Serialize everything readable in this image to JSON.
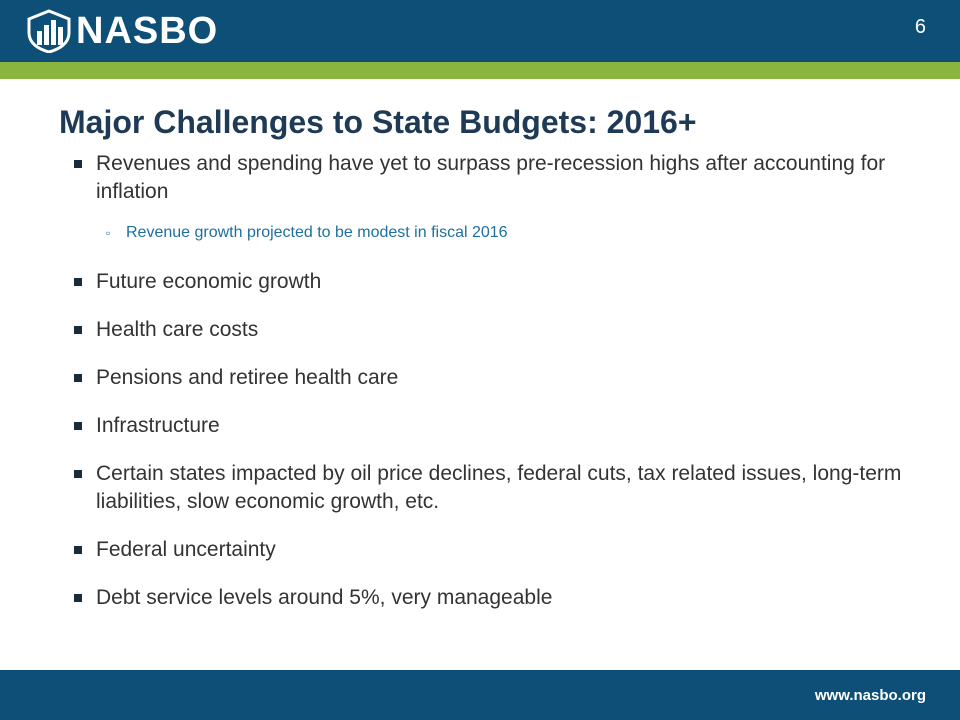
{
  "header": {
    "logo_text": "NASBO",
    "page_number": "6"
  },
  "title": "Major Challenges to State Budgets: 2016+",
  "bullets": [
    {
      "text": "Revenues and spending have yet to surpass pre-recession highs after accounting for inflation",
      "sub": [
        "Revenue growth projected to be modest in fiscal 2016"
      ]
    },
    {
      "text": "Future economic growth"
    },
    {
      "text": "Health care costs"
    },
    {
      "text": "Pensions and retiree health care"
    },
    {
      "text": "Infrastructure"
    },
    {
      "text": "Certain states impacted by oil price declines, federal cuts, tax related issues, long-term liabilities, slow economic growth, etc."
    },
    {
      "text": "Federal uncertainty"
    },
    {
      "text": "Debt service levels around 5%, very manageable"
    }
  ],
  "footer": {
    "url": "www.nasbo.org"
  },
  "colors": {
    "header_blue": "#0d4f76",
    "accent_green": "#8ab63f",
    "title": "#1e3a55",
    "sub_bullet": "#1f6f9e"
  },
  "icons": {
    "logo": "nasbo-bars-logo-icon",
    "bullet": "square-bullet-icon",
    "sub_bullet": "small-square-bullet-icon"
  }
}
